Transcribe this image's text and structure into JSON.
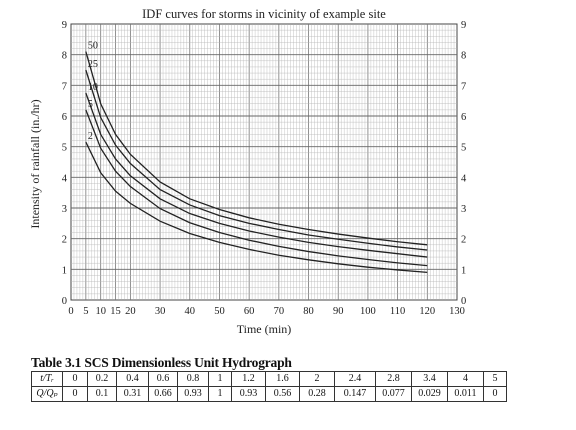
{
  "chart_data": {
    "type": "line",
    "title": "IDF curves for storms in vicinity of example site",
    "xlabel": "Time (min)",
    "ylabel": "Intensity of rainfall (in./hr)",
    "xlim": [
      0,
      130
    ],
    "ylim": [
      0,
      9
    ],
    "x_ticks": [
      "0",
      "5",
      "10",
      "15",
      "20",
      "30",
      "40",
      "50",
      "60",
      "70",
      "80",
      "90",
      "100",
      "110",
      "120",
      "130"
    ],
    "x_tick_values": [
      0,
      5,
      10,
      15,
      20,
      30,
      40,
      50,
      60,
      70,
      80,
      90,
      100,
      110,
      120,
      130
    ],
    "y_ticks": [
      "0",
      "1",
      "2",
      "3",
      "4",
      "5",
      "6",
      "7",
      "8",
      "9"
    ],
    "grid": true,
    "series": [
      {
        "name": "50",
        "x": [
          5,
          10,
          15,
          20,
          30,
          40,
          50,
          60,
          70,
          80,
          90,
          100,
          110,
          120
        ],
        "values": [
          8.1,
          6.4,
          5.4,
          4.75,
          3.85,
          3.3,
          2.95,
          2.68,
          2.47,
          2.3,
          2.15,
          2.02,
          1.9,
          1.8
        ]
      },
      {
        "name": "25",
        "x": [
          5,
          10,
          15,
          20,
          30,
          40,
          50,
          60,
          70,
          80,
          90,
          100,
          110,
          120
        ],
        "values": [
          7.5,
          5.95,
          5.05,
          4.45,
          3.6,
          3.1,
          2.75,
          2.5,
          2.3,
          2.12,
          1.98,
          1.85,
          1.73,
          1.63
        ]
      },
      {
        "name": "10",
        "x": [
          5,
          10,
          15,
          20,
          30,
          40,
          50,
          60,
          70,
          80,
          90,
          100,
          110,
          120
        ],
        "values": [
          6.75,
          5.4,
          4.6,
          4.05,
          3.3,
          2.82,
          2.5,
          2.25,
          2.05,
          1.88,
          1.74,
          1.62,
          1.51,
          1.4
        ]
      },
      {
        "name": "5",
        "x": [
          5,
          10,
          15,
          20,
          30,
          40,
          50,
          60,
          70,
          80,
          90,
          100,
          110,
          120
        ],
        "values": [
          6.2,
          4.95,
          4.2,
          3.7,
          2.98,
          2.52,
          2.2,
          1.95,
          1.75,
          1.58,
          1.44,
          1.32,
          1.21,
          1.12
        ]
      },
      {
        "name": "2",
        "x": [
          5,
          10,
          15,
          20,
          30,
          40,
          50,
          60,
          70,
          80,
          90,
          100,
          110,
          120
        ],
        "values": [
          5.15,
          4.15,
          3.55,
          3.15,
          2.57,
          2.17,
          1.88,
          1.65,
          1.46,
          1.31,
          1.18,
          1.07,
          0.98,
          0.9
        ]
      }
    ]
  },
  "table": {
    "title": "Table 3.1 SCS Dimensionless Unit Hydrograph",
    "row1_label": "t/Tᵣ",
    "row2_label": "Q/Qₚ",
    "row1": [
      "0",
      "0.2",
      "0.4",
      "0.6",
      "0.8",
      "1",
      "1.2",
      "1.6",
      "2",
      "2.4",
      "2.8",
      "3.4",
      "4",
      "5"
    ],
    "row2": [
      "0",
      "0.1",
      "0.31",
      "0.66",
      "0.93",
      "1",
      "0.93",
      "0.56",
      "0.28",
      "0.147",
      "0.077",
      "0.029",
      "0.011",
      "0"
    ]
  }
}
